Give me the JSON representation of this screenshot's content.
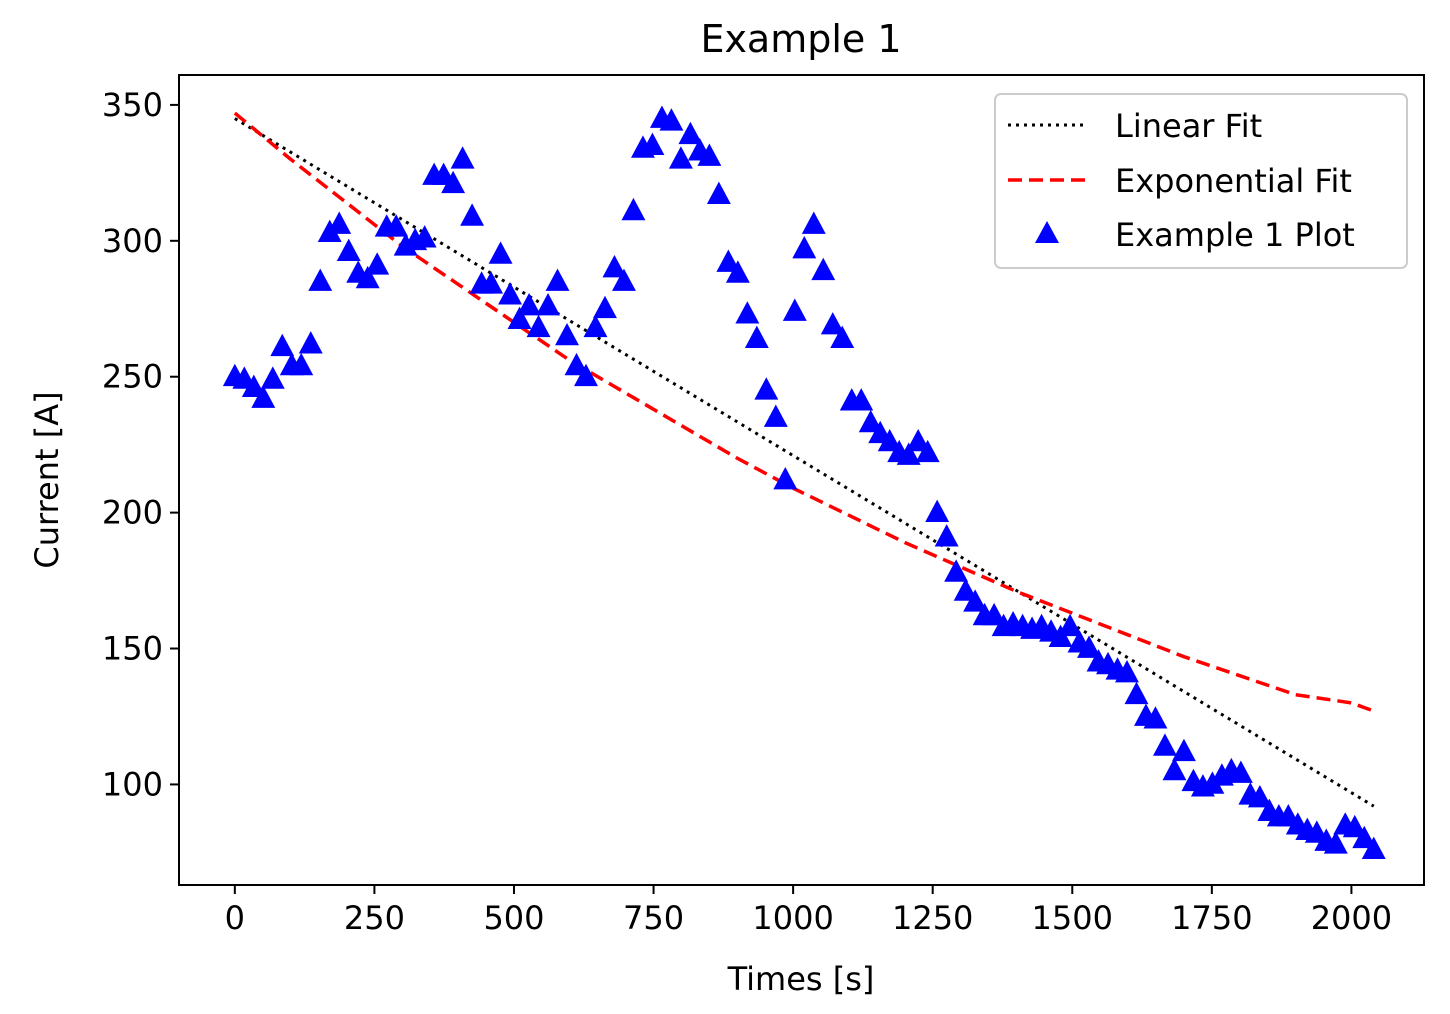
{
  "chart_data": {
    "type": "scatter",
    "title": "Example 1",
    "xlabel": "Times [s]",
    "ylabel": "Current [A]",
    "xlim": [
      -100,
      2130
    ],
    "ylim": [
      63,
      361
    ],
    "xticks": [
      0,
      250,
      500,
      750,
      1000,
      1250,
      1500,
      1750,
      2000
    ],
    "yticks": [
      100,
      150,
      200,
      250,
      300,
      350
    ],
    "grid": false,
    "legend_position": "top-right",
    "series": [
      {
        "name": "Linear Fit",
        "kind": "line",
        "style": "dotted",
        "color": "#000000",
        "x": [
          0,
          2040
        ],
        "y": [
          345,
          92
        ]
      },
      {
        "name": "Exponential Fit",
        "kind": "line",
        "style": "dashed",
        "color": "#ff0000",
        "x": [
          0,
          100,
          200,
          300,
          400,
          500,
          600,
          700,
          800,
          900,
          1000,
          1100,
          1200,
          1300,
          1400,
          1500,
          1600,
          1700,
          1800,
          1900,
          2000,
          2040
        ],
        "y": [
          347,
          330,
          314,
          298,
          284,
          270,
          256,
          244,
          232,
          220,
          209,
          199,
          189,
          180,
          171,
          163,
          155,
          147,
          140,
          133,
          130,
          127
        ]
      },
      {
        "name": "Example 1 Plot",
        "kind": "scatter",
        "marker": "triangle",
        "color": "#0000ff",
        "x": [
          0,
          17,
          34,
          51,
          68,
          85,
          102,
          119,
          136,
          153,
          170,
          187,
          204,
          221,
          238,
          255,
          272,
          289,
          306,
          323,
          340,
          357,
          374,
          391,
          408,
          425,
          442,
          459,
          476,
          493,
          510,
          527,
          544,
          561,
          578,
          595,
          612,
          629,
          646,
          663,
          680,
          697,
          714,
          731,
          748,
          765,
          782,
          799,
          816,
          833,
          850,
          867,
          884,
          901,
          918,
          935,
          952,
          969,
          986,
          1003,
          1020,
          1037,
          1054,
          1071,
          1088,
          1105,
          1122,
          1139,
          1156,
          1173,
          1190,
          1207,
          1224,
          1241,
          1258,
          1275,
          1292,
          1309,
          1326,
          1343,
          1360,
          1377,
          1394,
          1411,
          1428,
          1445,
          1462,
          1479,
          1496,
          1513,
          1530,
          1547,
          1564,
          1581,
          1598,
          1615,
          1632,
          1649,
          1666,
          1683,
          1700,
          1717,
          1734,
          1751,
          1768,
          1785,
          1802,
          1819,
          1836,
          1853,
          1870,
          1887,
          1904,
          1921,
          1938,
          1955,
          1972,
          1989,
          2006,
          2023,
          2040
        ],
        "y": [
          250,
          249,
          246,
          242,
          249,
          261,
          254,
          254,
          262,
          285,
          303,
          306,
          296,
          288,
          286,
          291,
          305,
          305,
          298,
          300,
          301,
          324,
          324,
          321,
          330,
          309,
          284,
          284,
          295,
          280,
          271,
          276,
          268,
          276,
          285,
          265,
          254,
          250,
          268,
          275,
          290,
          285,
          311,
          334,
          335,
          345,
          344,
          330,
          339,
          333,
          331,
          317,
          292,
          288,
          273,
          264,
          245,
          235,
          212,
          274,
          297,
          306,
          289,
          269,
          264,
          241,
          241,
          233,
          229,
          226,
          222,
          221,
          226,
          222,
          200,
          191,
          178,
          171,
          167,
          162,
          162,
          158,
          159,
          158,
          157,
          158,
          156,
          154,
          158,
          152,
          150,
          145,
          144,
          142,
          141,
          133,
          125,
          124,
          114,
          105,
          112,
          101,
          99,
          100,
          103,
          105,
          104,
          96,
          95,
          90,
          88,
          88,
          85,
          83,
          82,
          79,
          78,
          85,
          84,
          80,
          76
        ]
      }
    ]
  }
}
